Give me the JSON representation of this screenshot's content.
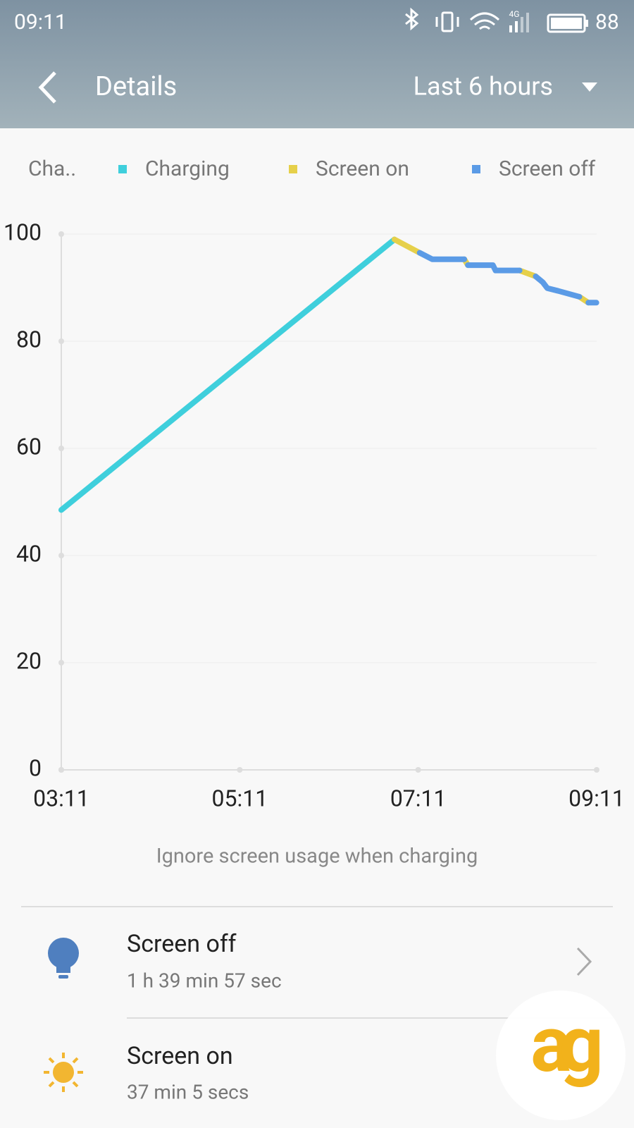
{
  "status_bar": {
    "time": "09:11",
    "network": "4G",
    "battery": "88"
  },
  "header": {
    "title": "Details",
    "range": "Last 6 hours"
  },
  "chart_data": {
    "type": "line",
    "legend_title": "Cha..",
    "series": [
      {
        "name": "Charging",
        "color": "#3fcfdc",
        "x": [
          3.1833,
          6.917
        ],
        "values": [
          48.5,
          99
        ]
      },
      {
        "name": "Screen on",
        "color": "#e6d04a",
        "x": [
          6.917,
          7.2,
          null,
          7.7,
          7.74,
          null,
          8.32,
          8.5,
          null,
          8.99,
          9.09
        ],
        "values": [
          99,
          96.5,
          null,
          95.3,
          94.2,
          null,
          93.2,
          92.1,
          null,
          88.3,
          87.2
        ]
      },
      {
        "name": "Screen off",
        "color": "#5b9be6",
        "x": [
          7.2,
          7.34,
          7.7,
          null,
          7.74,
          8.02,
          8.05,
          8.32,
          null,
          8.5,
          8.58,
          8.63,
          8.75,
          8.99,
          null,
          9.09,
          9.18
        ],
        "values": [
          96.5,
          95.3,
          95.3,
          null,
          94.2,
          94.2,
          93.2,
          93.2,
          null,
          92.1,
          91.0,
          89.9,
          89.4,
          88.3,
          null,
          87.2,
          87.2
        ]
      }
    ],
    "xlim": [
      3.1833,
      9.1833
    ],
    "xticks": [
      {
        "value": 3.1833,
        "label": "03:11"
      },
      {
        "value": 5.1833,
        "label": "05:11"
      },
      {
        "value": 7.1833,
        "label": "07:11"
      },
      {
        "value": 9.1833,
        "label": "09:11"
      }
    ],
    "ylim": [
      0,
      100
    ],
    "yticks": [
      0,
      20,
      40,
      60,
      80,
      100
    ],
    "grid": true
  },
  "note": "Ignore screen usage when charging",
  "items": [
    {
      "title": "Screen off",
      "detail": "1 h 39 min 57 sec"
    },
    {
      "title": "Screen on",
      "detail": "37 min 5 secs"
    }
  ],
  "watermark": "ag"
}
